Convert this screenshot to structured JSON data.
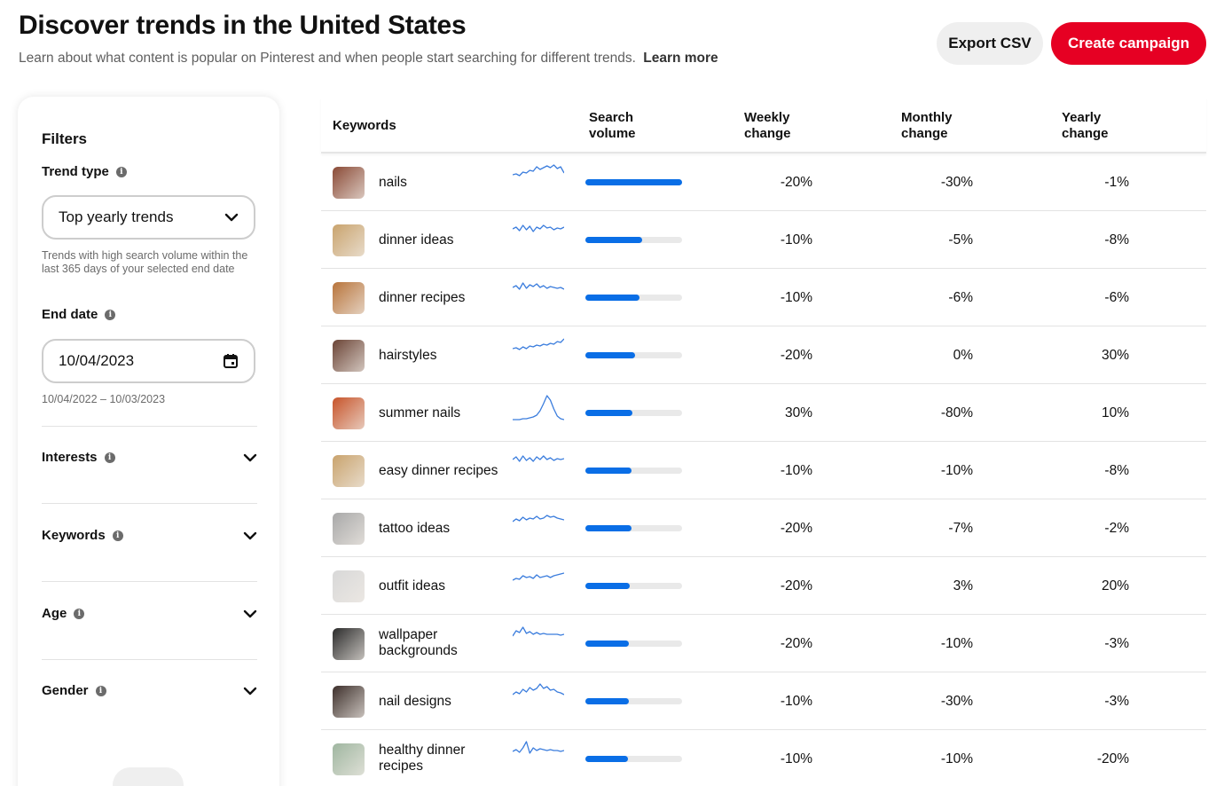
{
  "header": {
    "title": "Discover trends in the United States",
    "subtitle": "Learn about what content is popular on Pinterest and when people start searching for different trends.",
    "learn_more": "Learn more",
    "export_label": "Export CSV",
    "create_label": "Create campaign"
  },
  "filters": {
    "title": "Filters",
    "trend_type_label": "Trend type",
    "trend_type_value": "Top yearly trends",
    "trend_type_hint": "Trends with high search volume within the last 365 days of your selected end date",
    "end_date_label": "End date",
    "end_date_value": "10/04/2023",
    "date_range": "10/04/2022 – 10/03/2023",
    "sections": [
      {
        "label": "Interests"
      },
      {
        "label": "Keywords"
      },
      {
        "label": "Age"
      },
      {
        "label": "Gender"
      }
    ]
  },
  "table": {
    "headers": {
      "keywords": "Keywords",
      "search_volume": "Search volume",
      "weekly": "Weekly change",
      "monthly": "Monthly change",
      "yearly": "Yearly change"
    },
    "rows": [
      {
        "keyword": "nails",
        "volume": 1.0,
        "weekly": "-20%",
        "monthly": "-30%",
        "yearly": "-1%",
        "thumb_color": "#8a4a36",
        "spark": [
          14,
          13,
          15,
          11,
          12,
          9,
          10,
          5,
          8,
          6,
          4,
          6,
          3,
          7,
          5,
          12
        ]
      },
      {
        "keyword": "dinner ideas",
        "volume": 0.59,
        "weekly": "-10%",
        "monthly": "-5%",
        "yearly": "-8%",
        "thumb_color": "#c9a36d",
        "spark": [
          10,
          8,
          12,
          6,
          11,
          7,
          13,
          8,
          10,
          6,
          9,
          8,
          11,
          9,
          10,
          8
        ]
      },
      {
        "keyword": "dinner recipes",
        "volume": 0.56,
        "weekly": "-10%",
        "monthly": "-6%",
        "yearly": "-6%",
        "thumb_color": "#b8743b",
        "spark": [
          11,
          9,
          13,
          6,
          12,
          8,
          10,
          7,
          11,
          9,
          12,
          10,
          11,
          12,
          11,
          13
        ]
      },
      {
        "keyword": "hairstyles",
        "volume": 0.51,
        "weekly": "-20%",
        "monthly": "0%",
        "yearly": "30%",
        "thumb_color": "#6b4436",
        "spark": [
          15,
          14,
          16,
          13,
          15,
          12,
          13,
          11,
          12,
          10,
          11,
          9,
          10,
          7,
          8,
          4
        ]
      },
      {
        "keyword": "summer nails",
        "volume": 0.49,
        "weekly": "30%",
        "monthly": "-80%",
        "yearly": "10%",
        "thumb_color": "#c7542a",
        "spark": [
          30,
          30,
          30,
          29,
          29,
          28,
          27,
          25,
          20,
          12,
          3,
          8,
          18,
          26,
          29,
          30
        ]
      },
      {
        "keyword": "easy dinner recipes",
        "volume": 0.48,
        "weekly": "-10%",
        "monthly": "-10%",
        "yearly": "-8%",
        "thumb_color": "#c9a36d",
        "spark": [
          10,
          7,
          12,
          6,
          11,
          8,
          12,
          7,
          10,
          6,
          10,
          8,
          11,
          9,
          10,
          9
        ]
      },
      {
        "keyword": "tattoo ideas",
        "volume": 0.48,
        "weekly": "-20%",
        "monthly": "-7%",
        "yearly": "-2%",
        "thumb_color": "#a8a8a8",
        "spark": [
          15,
          12,
          14,
          10,
          13,
          11,
          12,
          9,
          12,
          11,
          8,
          10,
          9,
          11,
          12,
          13
        ]
      },
      {
        "keyword": "outfit ideas",
        "volume": 0.46,
        "weekly": "-20%",
        "monthly": "3%",
        "yearly": "20%",
        "thumb_color": "#d8d8d8",
        "spark": [
          16,
          14,
          15,
          11,
          13,
          12,
          14,
          10,
          13,
          12,
          11,
          13,
          11,
          10,
          9,
          8
        ]
      },
      {
        "keyword": "wallpaper backgrounds",
        "volume": 0.45,
        "weekly": "-20%",
        "monthly": "-10%",
        "yearly": "-3%",
        "thumb_color": "#2b2b2b",
        "spark": [
          14,
          8,
          10,
          4,
          11,
          9,
          12,
          10,
          12,
          11,
          12,
          12,
          12,
          12,
          13,
          12
        ]
      },
      {
        "keyword": "nail designs",
        "volume": 0.45,
        "weekly": "-10%",
        "monthly": "-30%",
        "yearly": "-3%",
        "thumb_color": "#3d2f2b",
        "spark": [
          15,
          12,
          14,
          9,
          12,
          7,
          10,
          8,
          3,
          8,
          6,
          10,
          9,
          12,
          13,
          15
        ]
      },
      {
        "keyword": "healthy dinner recipes",
        "volume": 0.44,
        "weekly": "-10%",
        "monthly": "-10%",
        "yearly": "-20%",
        "thumb_color": "#9fb6a0",
        "spark": [
          14,
          12,
          15,
          10,
          3,
          16,
          10,
          13,
          11,
          12,
          13,
          12,
          13,
          13,
          14,
          13
        ]
      }
    ]
  }
}
